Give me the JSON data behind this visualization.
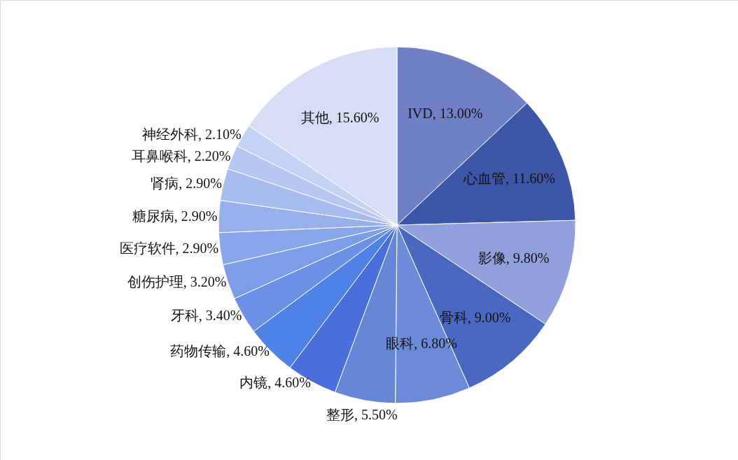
{
  "chart_data": {
    "type": "pie",
    "categories": [
      "IVD",
      "心血管",
      "影像",
      "骨科",
      "眼科",
      "整形",
      "内镜",
      "药物传输",
      "牙科",
      "创伤护理",
      "医疗软件",
      "糖尿病",
      "肾病",
      "耳鼻喉科",
      "神经外科",
      "其他"
    ],
    "values": [
      13.0,
      11.6,
      9.8,
      9.0,
      6.8,
      5.5,
      4.6,
      4.6,
      3.4,
      3.2,
      2.9,
      2.9,
      2.9,
      2.2,
      2.1,
      15.6
    ],
    "value_labels": [
      "13.00%",
      "11.60%",
      "9.80%",
      "9.00%",
      "6.80%",
      "5.50%",
      "4.60%",
      "4.60%",
      "3.40%",
      "3.20%",
      "2.90%",
      "2.90%",
      "2.90%",
      "2.20%",
      "2.10%",
      "15.60%"
    ],
    "colors": [
      "#6f80c4",
      "#3d56a8",
      "#8fa0dc",
      "#4a68c2",
      "#6d8ad8",
      "#6686d8",
      "#4a6fdc",
      "#4f82e6",
      "#6b90e6",
      "#7d9de8",
      "#8aa6ea",
      "#97b0ec",
      "#a8bdef",
      "#b6c7f1",
      "#c4d2f4",
      "#d6def6"
    ]
  }
}
